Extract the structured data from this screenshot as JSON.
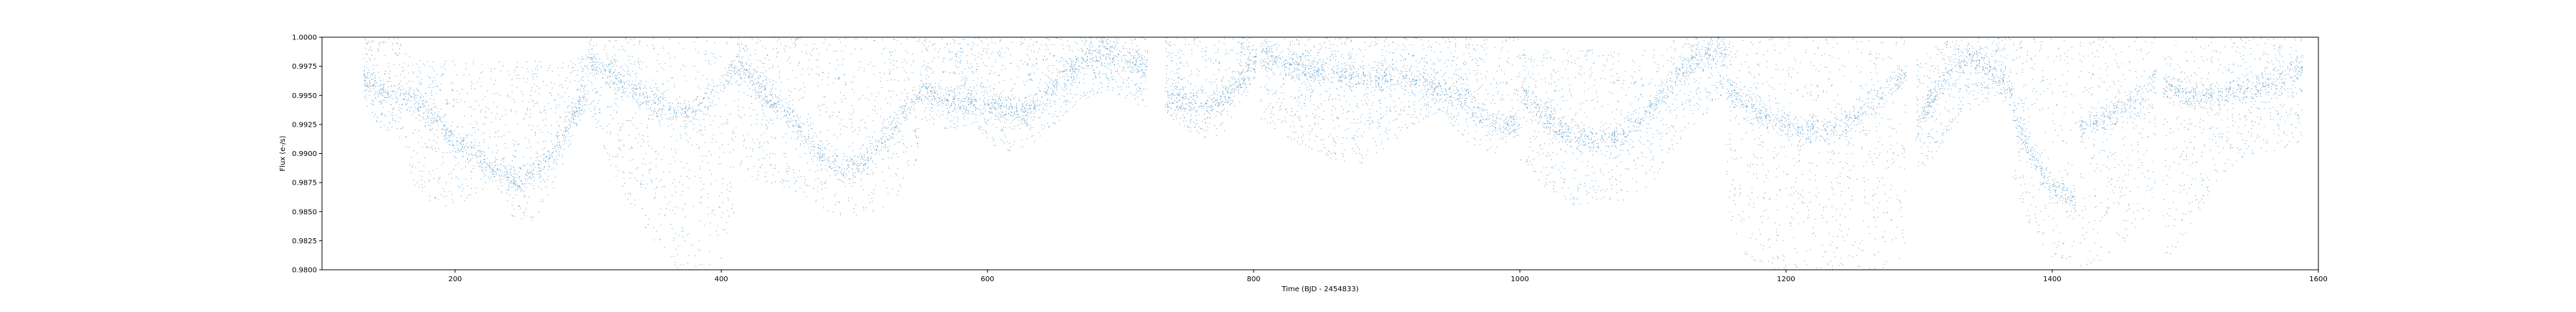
{
  "chart_data": {
    "type": "scatter",
    "title": "",
    "xlabel": "Time (BJD - 2454833)",
    "ylabel": "Flux (e-/s)",
    "xlim": [
      100,
      1600
    ],
    "ylim": [
      0.98,
      1.0
    ],
    "xticks": [
      200,
      400,
      600,
      800,
      1000,
      1200,
      1400,
      1600
    ],
    "yticks": [
      "0.9800",
      "0.9825",
      "0.9850",
      "0.9875",
      "0.9900",
      "0.9925",
      "0.9950",
      "0.9975",
      "1.0000"
    ],
    "grid": false,
    "marker_color": "#1f77b4",
    "series": [
      {
        "segments": [
          {
            "x": [
              131,
              145,
              160,
              170,
              185,
              200,
              215,
              230,
              245,
              260,
              275,
              290,
              300
            ],
            "upper": [
              1.0,
              1.0,
              1.0,
              0.998,
              0.998,
              0.998,
              0.998,
              0.998,
              0.998,
              0.998,
              0.998,
              0.998,
              0.999
            ],
            "lower": [
              0.9945,
              0.992,
              0.991,
              0.987,
              0.9855,
              0.9855,
              0.9865,
              0.9875,
              0.984,
              0.984,
              0.987,
              0.992,
              0.994
            ],
            "dense": [
              0.9965,
              0.9955,
              0.995,
              0.9945,
              0.993,
              0.991,
              0.99,
              0.9885,
              0.9875,
              0.9885,
              0.99,
              0.9935,
              0.9955
            ]
          },
          {
            "x": [
              300,
              320,
              340,
              355,
              370,
              385,
              400,
              410
            ],
            "upper": [
              1.0,
              1.0,
              1.0,
              1.0,
              1.0,
              1.0,
              1.0,
              1.0
            ],
            "lower": [
              0.994,
              0.988,
              0.984,
              0.981,
              0.98,
              0.98,
              0.981,
              0.984
            ],
            "dense": [
              0.998,
              0.9965,
              0.995,
              0.994,
              0.9935,
              0.994,
              0.996,
              0.9975
            ]
          },
          {
            "x": [
              410,
              430,
              450,
              470,
              490,
              510,
              530,
              550
            ],
            "upper": [
              1.0,
              1.0,
              1.0,
              1.0,
              1.0,
              1.0,
              1.0,
              1.0
            ],
            "lower": [
              0.989,
              0.9875,
              0.987,
              0.9855,
              0.9845,
              0.9845,
              0.986,
              0.99
            ],
            "dense": [
              0.998,
              0.9955,
              0.9935,
              0.9905,
              0.9885,
              0.9895,
              0.9925,
              0.9955
            ]
          },
          {
            "x": [
              550,
              570,
              590,
              610,
              630,
              650,
              670,
              690,
              710,
              720
            ],
            "upper": [
              1.0,
              1.0,
              1.0,
              1.0,
              1.0,
              1.0,
              1.0,
              1.0,
              1.0,
              1.0
            ],
            "lower": [
              0.993,
              0.992,
              0.9925,
              0.99,
              0.9905,
              0.9925,
              0.9945,
              0.9955,
              0.9945,
              0.9935
            ],
            "dense": [
              0.9955,
              0.9945,
              0.9945,
              0.994,
              0.9935,
              0.996,
              0.998,
              0.999,
              0.998,
              0.9975
            ]
          },
          {
            "x": [
              733,
              750,
              765,
              780,
              795,
              802
            ],
            "upper": [
              1.0,
              1.0,
              1.0,
              1.0,
              1.0,
              1.0
            ],
            "lower": [
              0.9935,
              0.992,
              0.991,
              0.992,
              0.995,
              0.997
            ],
            "dense": [
              0.995,
              0.9945,
              0.994,
              0.995,
              0.997,
              0.9985
            ]
          },
          {
            "x": [
              805,
              830,
              860,
              880,
              900,
              920,
              940,
              960,
              980,
              1000
            ],
            "upper": [
              1.0,
              1.0,
              1.0,
              1.0,
              1.0,
              1.0,
              1.0,
              1.0,
              1.0,
              1.0
            ],
            "lower": [
              0.993,
              0.991,
              0.9895,
              0.989,
              0.9905,
              0.9925,
              0.9935,
              0.991,
              0.99,
              0.991
            ],
            "dense": [
              0.9985,
              0.9975,
              0.997,
              0.9965,
              0.9965,
              0.9965,
              0.9955,
              0.9945,
              0.9925,
              0.9925
            ]
          },
          {
            "x": [
              1000,
              1020,
              1040,
              1060,
              1080,
              1100,
              1120,
              1140,
              1155
            ],
            "upper": [
              0.999,
              0.999,
              0.999,
              0.999,
              0.999,
              0.999,
              1.0,
              1.0,
              1.0
            ],
            "lower": [
              0.9895,
              0.987,
              0.9855,
              0.9855,
              0.986,
              0.9875,
              0.991,
              0.9935,
              0.9955
            ],
            "dense": [
              0.9955,
              0.993,
              0.9915,
              0.991,
              0.992,
              0.994,
              0.997,
              0.9985,
              0.999
            ]
          },
          {
            "x": [
              1155,
              1170,
              1190,
              1210,
              1230,
              1250,
              1270,
              1290
            ],
            "upper": [
              1.0,
              1.0,
              1.0,
              1.0,
              1.0,
              1.0,
              1.0,
              1.0
            ],
            "lower": [
              0.985,
              0.981,
              0.98,
              0.98,
              0.98,
              0.98,
              0.98,
              0.981
            ],
            "dense": [
              0.996,
              0.994,
              0.993,
              0.992,
              0.992,
              0.993,
              0.995,
              0.997
            ]
          },
          {
            "x": [
              1297,
              1310,
              1325,
              1340,
              1355,
              1370
            ],
            "upper": [
              0.998,
              0.999,
              1.0,
              1.0,
              1.0,
              1.0
            ],
            "lower": [
              0.9885,
              0.9895,
              0.992,
              0.994,
              0.9945,
              0.994
            ],
            "dense": [
              0.992,
              0.995,
              0.9975,
              0.9985,
              0.997,
              0.9955
            ]
          },
          {
            "x": [
              1370,
              1385,
              1400,
              1418
            ],
            "upper": [
              1.0,
              1.0,
              1.0,
              1.0
            ],
            "lower": [
              0.988,
              0.983,
              0.981,
              0.98
            ],
            "dense": [
              0.9935,
              0.99,
              0.987,
              0.986
            ]
          },
          {
            "x": [
              1420,
              1440,
              1460,
              1478
            ],
            "upper": [
              1.0,
              1.0,
              1.0,
              1.0
            ],
            "lower": [
              0.98,
              0.981,
              0.983,
              0.986
            ],
            "dense": [
              0.992,
              0.993,
              0.9945,
              0.9965
            ]
          },
          {
            "x": [
              1483,
              1500,
              1520,
              1540,
              1560,
              1575,
              1588
            ],
            "upper": [
              0.999,
              1.0,
              1.0,
              1.0,
              1.0,
              1.0,
              1.0
            ],
            "lower": [
              0.9805,
              0.983,
              0.987,
              0.9895,
              0.99,
              0.9905,
              0.991
            ],
            "dense": [
              0.996,
              0.995,
              0.995,
              0.9955,
              0.996,
              0.9965,
              0.9975
            ]
          }
        ]
      }
    ]
  }
}
